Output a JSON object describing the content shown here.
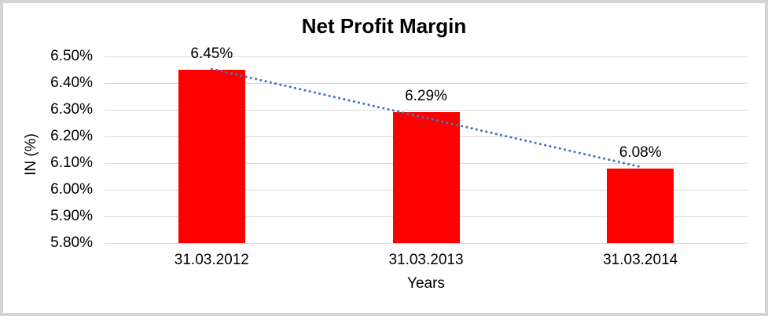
{
  "frame": {
    "border_color": "#d5d5d5",
    "background_color": "#ffffff"
  },
  "chart_data": {
    "type": "bar",
    "title": "Net Profit Margin",
    "xlabel": "Years",
    "ylabel": "IN (%)",
    "categories": [
      "31.03.2012",
      "31.03.2013",
      "31.03.2014"
    ],
    "values": [
      6.45,
      6.29,
      6.08
    ],
    "data_labels": [
      "6.45%",
      "6.29%",
      "6.08%"
    ],
    "y_ticks": [
      "6.50%",
      "6.40%",
      "6.30%",
      "6.20%",
      "6.10%",
      "6.00%",
      "5.90%",
      "5.80%"
    ],
    "ylim": [
      5.8,
      6.5
    ],
    "y_step": 0.1,
    "grid": "horizontal",
    "gridline_color": "#d9d9d9",
    "legend": "none",
    "bar_color": "#ff0000",
    "text_color": "#000000",
    "trendline": {
      "style": "dotted",
      "color": "#4472c4",
      "from_value": 6.45,
      "to_value": 6.08
    }
  }
}
